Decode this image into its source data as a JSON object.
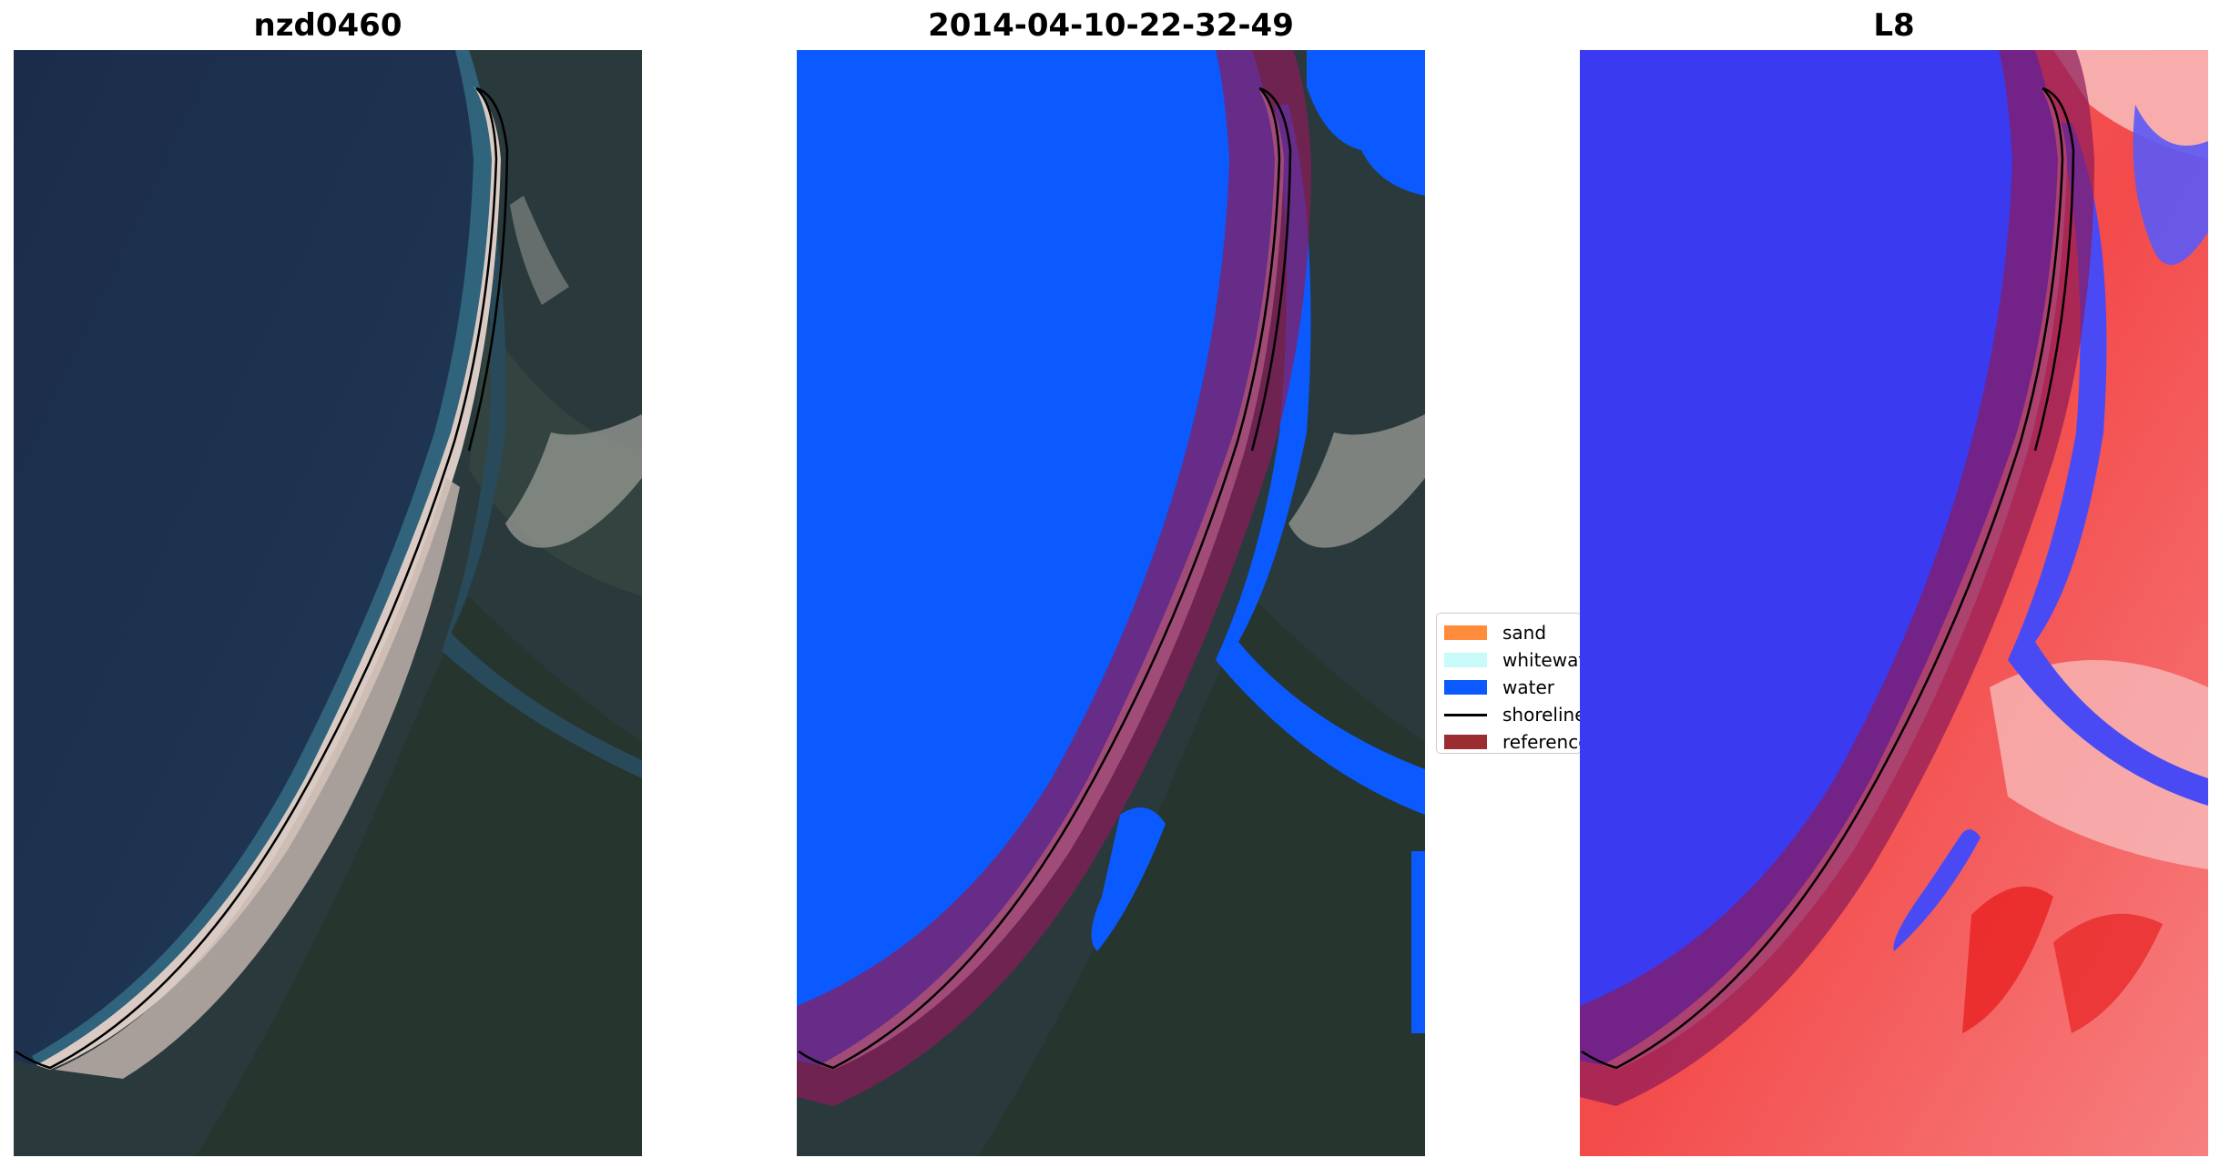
{
  "panels": [
    {
      "title": "nzd0460"
    },
    {
      "title": "2014-04-10-22-32-49"
    },
    {
      "title": "L8"
    }
  ],
  "legend": {
    "items": [
      {
        "label": "sand",
        "color": "#ff8c3a"
      },
      {
        "label": "whitewater",
        "color": "#c8fafa"
      },
      {
        "label": "water",
        "color": "#0a5aff"
      },
      {
        "label": "shoreline",
        "color": "#000000"
      },
      {
        "label": "reference",
        "color": "#9b2d30"
      }
    ]
  },
  "colors": {
    "ocean_rgb": "#1d2f4f",
    "land_rgb": "#2a3a3c",
    "sand_rgb": "#d8c9c3",
    "classified_water": "#0a5aff",
    "buffer_overlay": "#8b1a5a",
    "mndwi_water": "#3a3af0",
    "mndwi_land": "#f26060"
  }
}
